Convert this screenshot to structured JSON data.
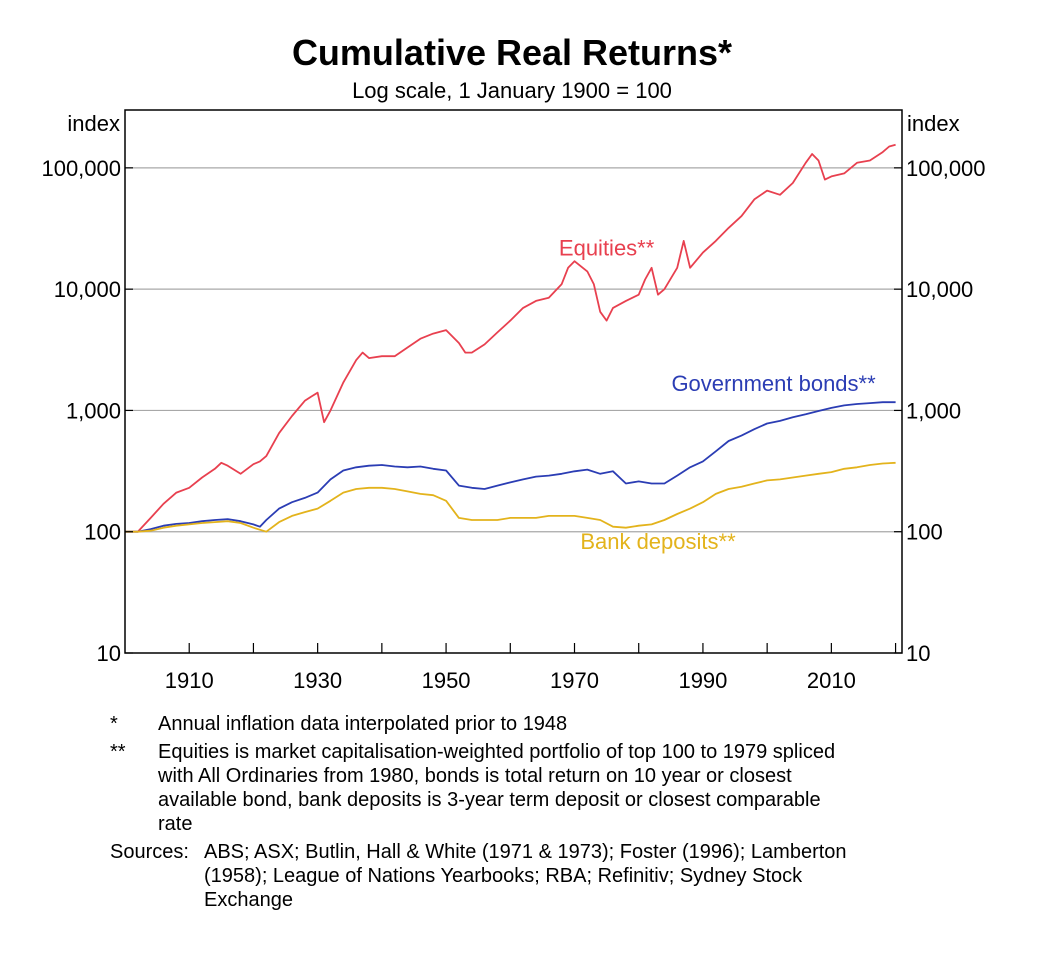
{
  "chart_data": {
    "type": "line",
    "title": "Cumulative Real Returns*",
    "subtitle": "Log scale, 1 January 1900 = 100",
    "ylabel_left": "index",
    "ylabel_right": "index",
    "y_scale": "log",
    "ylim": [
      10,
      300000
    ],
    "xlim": [
      1900,
      2021
    ],
    "x_ticks": [
      1910,
      1930,
      1950,
      1970,
      1990,
      2010
    ],
    "x_tick_labels": [
      "1910",
      "1930",
      "1950",
      "1970",
      "1990",
      "2010"
    ],
    "y_ticks": [
      10,
      100,
      1000,
      10000,
      100000
    ],
    "y_tick_labels": [
      "10",
      "100",
      "1,000",
      "10,000",
      "100,000"
    ],
    "grid": true,
    "series": [
      {
        "name": "Equities**",
        "color": "#e8404f",
        "x": [
          1900,
          1902,
          1904,
          1906,
          1908,
          1910,
          1912,
          1914,
          1915,
          1916,
          1918,
          1920,
          1921,
          1922,
          1924,
          1926,
          1928,
          1929,
          1930,
          1931,
          1932,
          1934,
          1936,
          1937,
          1938,
          1940,
          1942,
          1944,
          1946,
          1948,
          1950,
          1952,
          1953,
          1954,
          1956,
          1958,
          1960,
          1962,
          1964,
          1966,
          1968,
          1969,
          1970,
          1972,
          1973,
          1974,
          1975,
          1976,
          1978,
          1980,
          1981,
          1982,
          1983,
          1984,
          1986,
          1987,
          1988,
          1990,
          1992,
          1994,
          1996,
          1998,
          2000,
          2002,
          2004,
          2006,
          2007,
          2008,
          2009,
          2010,
          2012,
          2014,
          2016,
          2018,
          2019,
          2020
        ],
        "values": [
          100,
          100,
          130,
          170,
          210,
          230,
          280,
          330,
          370,
          350,
          300,
          360,
          380,
          420,
          650,
          900,
          1200,
          1300,
          1400,
          800,
          1000,
          1700,
          2600,
          3000,
          2700,
          2800,
          2800,
          3300,
          3900,
          4300,
          4600,
          3600,
          3000,
          3000,
          3500,
          4400,
          5500,
          7000,
          8000,
          8500,
          11000,
          15000,
          17000,
          14000,
          11000,
          6500,
          5500,
          7000,
          8000,
          9000,
          12000,
          15000,
          9000,
          10000,
          15000,
          25000,
          15000,
          20000,
          25000,
          32000,
          40000,
          55000,
          65000,
          60000,
          75000,
          110000,
          130000,
          115000,
          80000,
          85000,
          90000,
          110000,
          115000,
          135000,
          150000,
          155000
        ]
      },
      {
        "name": "Government bonds**",
        "color": "#2b3db4",
        "x": [
          1900,
          1902,
          1904,
          1906,
          1908,
          1910,
          1912,
          1914,
          1916,
          1918,
          1920,
          1921,
          1922,
          1924,
          1926,
          1928,
          1930,
          1932,
          1934,
          1936,
          1938,
          1940,
          1942,
          1944,
          1946,
          1948,
          1950,
          1952,
          1954,
          1956,
          1958,
          1960,
          1962,
          1964,
          1966,
          1968,
          1970,
          1972,
          1974,
          1976,
          1978,
          1980,
          1982,
          1984,
          1986,
          1988,
          1990,
          1992,
          1994,
          1996,
          1998,
          2000,
          2002,
          2004,
          2006,
          2008,
          2010,
          2012,
          2014,
          2016,
          2018,
          2020
        ],
        "values": [
          100,
          100,
          105,
          112,
          116,
          118,
          122,
          125,
          127,
          122,
          115,
          110,
          125,
          155,
          175,
          190,
          210,
          270,
          320,
          340,
          350,
          355,
          345,
          340,
          345,
          330,
          320,
          240,
          230,
          225,
          240,
          255,
          270,
          285,
          290,
          300,
          315,
          325,
          300,
          315,
          250,
          260,
          250,
          250,
          290,
          340,
          380,
          460,
          560,
          620,
          700,
          780,
          820,
          880,
          930,
          990,
          1050,
          1100,
          1130,
          1150,
          1170,
          1170
        ]
      },
      {
        "name": "Bank deposits**",
        "color": "#e3b31c",
        "x": [
          1900,
          1902,
          1904,
          1906,
          1908,
          1910,
          1912,
          1914,
          1916,
          1918,
          1920,
          1922,
          1924,
          1926,
          1928,
          1930,
          1932,
          1934,
          1936,
          1938,
          1940,
          1942,
          1944,
          1946,
          1948,
          1950,
          1952,
          1954,
          1956,
          1958,
          1960,
          1962,
          1964,
          1966,
          1968,
          1970,
          1972,
          1974,
          1976,
          1978,
          1980,
          1982,
          1984,
          1986,
          1988,
          1990,
          1992,
          1994,
          1996,
          1998,
          2000,
          2002,
          2004,
          2006,
          2008,
          2010,
          2012,
          2014,
          2016,
          2018,
          2020
        ],
        "values": [
          100,
          100,
          102,
          108,
          112,
          115,
          118,
          120,
          122,
          118,
          108,
          100,
          120,
          135,
          145,
          155,
          180,
          210,
          225,
          230,
          230,
          225,
          215,
          205,
          200,
          180,
          130,
          125,
          125,
          125,
          130,
          130,
          130,
          135,
          135,
          135,
          130,
          125,
          110,
          108,
          112,
          115,
          125,
          140,
          155,
          175,
          205,
          225,
          235,
          250,
          265,
          270,
          280,
          290,
          300,
          310,
          330,
          340,
          355,
          365,
          370
        ]
      }
    ],
    "annotations": [
      {
        "text": "Equities**",
        "color": "#e8404f",
        "x": 1975,
        "y": 19000
      },
      {
        "text": "Government bonds**",
        "color": "#2b3db4",
        "x": 2001,
        "y": 1450
      },
      {
        "text": "Bank deposits**",
        "color": "#e3b31c",
        "x": 1983,
        "y": 72
      }
    ]
  },
  "notes": {
    "star_mark": "*",
    "star_text": "Annual inflation data interpolated prior to 1948",
    "double_star_mark": "**",
    "double_star_text": "Equities is market capitalisation-weighted portfolio of top 100 to 1979 spliced with All Ordinaries from 1980, bonds is total return on 10 year or closest available bond, bank deposits is 3-year term deposit or closest comparable rate",
    "sources_label": "Sources:",
    "sources_text": "ABS; ASX; Butlin, Hall & White (1971 & 1973); Foster (1996); Lamberton (1958); League of Nations Yearbooks; RBA; Refinitiv; Sydney Stock Exchange"
  }
}
